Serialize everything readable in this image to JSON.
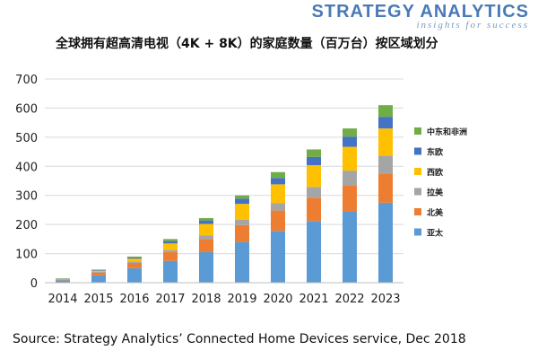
{
  "brand": {
    "name": "STRATEGY ANALYTICS",
    "tagline": "insights for success"
  },
  "source": "Source: Strategy Analytics’ Connected Home Devices service, Dec 2018",
  "chart_data": {
    "type": "bar",
    "stacked": true,
    "title": "全球拥有超高清电视（4K + 8K）的家庭数量（百万台）按区域划分",
    "xlabel": "",
    "ylabel": "",
    "ylim": [
      0,
      700
    ],
    "yticks": [
      0,
      100,
      200,
      300,
      400,
      500,
      600,
      700
    ],
    "grid": true,
    "legend_position": "right",
    "categories": [
      "2014",
      "2015",
      "2016",
      "2017",
      "2018",
      "2019",
      "2020",
      "2021",
      "2022",
      "2023"
    ],
    "series": [
      {
        "name": "亚太",
        "color": "#5b9bd5",
        "values": [
          8,
          25,
          50,
          75,
          105,
          140,
          178,
          212,
          245,
          275
        ]
      },
      {
        "name": "北美",
        "color": "#ed7d31",
        "values": [
          3,
          10,
          18,
          30,
          45,
          58,
          70,
          80,
          90,
          100
        ]
      },
      {
        "name": "拉美",
        "color": "#a5a5a5",
        "values": [
          0,
          2,
          5,
          8,
          12,
          18,
          25,
          37,
          50,
          62
        ]
      },
      {
        "name": "西欧",
        "color": "#ffc000",
        "values": [
          2,
          4,
          10,
          22,
          40,
          55,
          65,
          75,
          82,
          93
        ]
      },
      {
        "name": "东欧",
        "color": "#4472c4",
        "values": [
          1,
          2,
          4,
          8,
          12,
          18,
          22,
          28,
          35,
          40
        ]
      },
      {
        "name": "中东和非洲",
        "color": "#70ad47",
        "values": [
          1,
          2,
          3,
          7,
          8,
          11,
          20,
          26,
          28,
          40
        ]
      }
    ]
  }
}
